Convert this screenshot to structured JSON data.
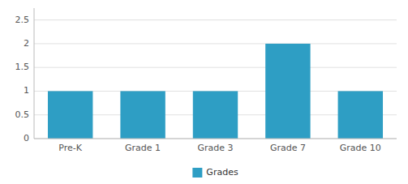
{
  "chart_data": {
    "type": "bar",
    "categories": [
      "Pre-K",
      "Grade 1",
      "Grade 3",
      "Grade 7",
      "Grade 10"
    ],
    "series": [
      {
        "name": "Grades",
        "color": "#2e9ec4",
        "values": [
          1,
          1,
          1,
          2,
          1
        ]
      }
    ],
    "ylim": [
      0,
      2.75
    ],
    "yticks": [
      0,
      0.5,
      1,
      1.5,
      2,
      2.5
    ],
    "grid": true,
    "legend": "bottom"
  }
}
